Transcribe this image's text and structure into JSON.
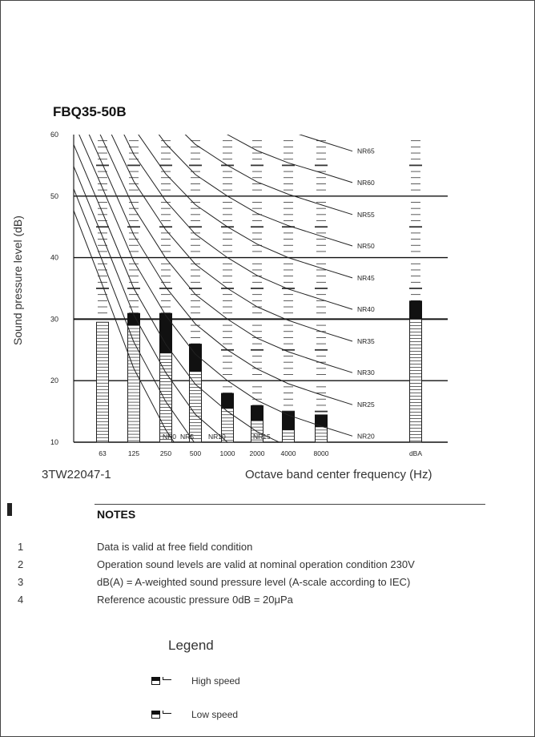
{
  "page": {
    "model_title": "FBQ35-50B",
    "drawing_code": "3TW22047-1"
  },
  "chart_data": {
    "type": "bar",
    "title": "FBQ35-50B",
    "ylabel": "Sound pressure level (dB)",
    "xlabel": "Octave band center frequency (Hz)",
    "ylim": [
      10,
      60
    ],
    "yticks": [
      10,
      20,
      30,
      40,
      50,
      60
    ],
    "categories": [
      "63",
      "125",
      "250",
      "500",
      "1000",
      "2000",
      "4000",
      "8000",
      "dBA"
    ],
    "series": [
      {
        "name": "High speed",
        "values": [
          29.5,
          31,
          31,
          26,
          18,
          16,
          15,
          14.5,
          33
        ]
      },
      {
        "name": "Low speed",
        "values": [
          29.5,
          29,
          24.5,
          21.5,
          15.5,
          13.5,
          12,
          12.5,
          30
        ]
      }
    ],
    "nr_curves": [
      {
        "label": "NR0",
        "values": [
          35.5,
          22,
          12,
          4.8,
          0,
          -3.5,
          -6.1,
          -8
        ]
      },
      {
        "label": "NR5",
        "values": [
          39.4,
          26.3,
          16.6,
          9.7,
          5,
          1.6,
          -1,
          -2.8
        ]
      },
      {
        "label": "NR10",
        "values": [
          43.4,
          30.7,
          21.3,
          14.5,
          10,
          6.6,
          4.2,
          2.3
        ]
      },
      {
        "label": "NR15",
        "values": [
          47.3,
          35,
          25.9,
          19.4,
          15,
          11.7,
          9.3,
          7.4
        ]
      },
      {
        "label": "NR20",
        "values": [
          51.3,
          39.4,
          30.6,
          24.3,
          20,
          16.8,
          14.4,
          12.6
        ]
      },
      {
        "label": "NR25",
        "values": [
          55.2,
          43.7,
          35.2,
          29.2,
          25,
          21.9,
          19.5,
          17.7
        ]
      },
      {
        "label": "NR30",
        "values": [
          59.2,
          48.1,
          39.9,
          34,
          30,
          26.9,
          24.7,
          22.9
        ]
      },
      {
        "label": "NR35",
        "values": [
          63.1,
          52.4,
          44.5,
          38.9,
          35,
          32,
          29.8,
          28
        ]
      },
      {
        "label": "NR40",
        "values": [
          67.1,
          56.8,
          49.2,
          43.8,
          40,
          37.1,
          34.9,
          33.2
        ]
      },
      {
        "label": "NR45",
        "values": [
          71,
          61.1,
          53.6,
          48.6,
          45,
          42.2,
          40,
          38.3
        ]
      },
      {
        "label": "NR50",
        "values": [
          75,
          65.5,
          58.5,
          53.5,
          50,
          47.2,
          45.2,
          43.5
        ]
      },
      {
        "label": "NR55",
        "values": [
          78.9,
          69.8,
          63.1,
          58.4,
          55,
          52.3,
          50.3,
          48.6
        ]
      },
      {
        "label": "NR60",
        "values": [
          82.9,
          74.2,
          67.8,
          63.2,
          60,
          57.4,
          55.4,
          53.8
        ]
      },
      {
        "label": "NR65",
        "values": [
          86.8,
          78.5,
          72.4,
          68.1,
          65,
          62.5,
          60.6,
          58.9
        ]
      }
    ],
    "grid": true,
    "legend_position": "bottom"
  },
  "notes": {
    "title": "NOTES",
    "items": [
      {
        "num": "1",
        "text": "Data is valid at free field condition"
      },
      {
        "num": "2",
        "text": "Operation sound levels are valid at nominal operation condition 230V"
      },
      {
        "num": "3",
        "text": "dB(A) = A-weighted sound pressure level (A-scale according to IEC)"
      },
      {
        "num": "4",
        "text": "Reference acoustic pressure 0dB = 20μPa"
      }
    ]
  },
  "legend": {
    "title": "Legend",
    "high_label": "High speed",
    "low_label": "Low speed"
  }
}
